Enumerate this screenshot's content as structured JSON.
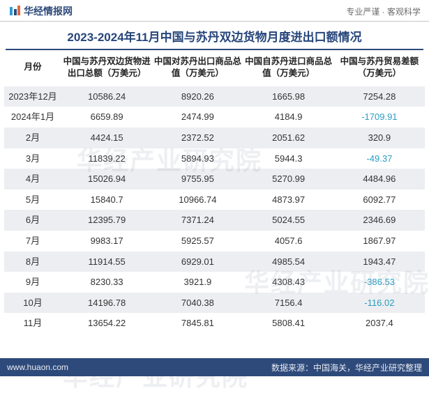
{
  "header": {
    "brand": "华经情报网",
    "brand_color": "#2e4a7a",
    "slogan": "专业严谨 · 客观科学",
    "slogan_color": "#6b6b6b"
  },
  "title": "2023-2024年11月中国与苏丹双边货物月度进出口额情况",
  "title_fontsize": 17,
  "title_color": "#26457a",
  "table": {
    "type": "table",
    "header_fontsize": 12.5,
    "cell_fontsize": 13,
    "row_odd_bg": "#eceef1",
    "row_even_bg": "#ffffff",
    "text_color": "#333333",
    "negative_color": "#2b9dc0",
    "columns": [
      "月份",
      "中国与苏丹双边货物进出口总额（万美元）",
      "中国对苏丹出口商品总值（万美元）",
      "中国自苏丹进口商品总值（万美元）",
      "中国与苏丹贸易差额（万美元）"
    ],
    "col_month_width": 82,
    "rows": [
      {
        "month": "2023年12月",
        "total": "10586.24",
        "export": "8920.26",
        "import": "1665.98",
        "balance": "7254.28",
        "neg": false
      },
      {
        "month": "2024年1月",
        "total": "6659.89",
        "export": "2474.99",
        "import": "4184.9",
        "balance": "-1709.91",
        "neg": true
      },
      {
        "month": "2月",
        "total": "4424.15",
        "export": "2372.52",
        "import": "2051.62",
        "balance": "320.9",
        "neg": false
      },
      {
        "month": "3月",
        "total": "11839.22",
        "export": "5894.93",
        "import": "5944.3",
        "balance": "-49.37",
        "neg": true
      },
      {
        "month": "4月",
        "total": "15026.94",
        "export": "9755.95",
        "import": "5270.99",
        "balance": "4484.96",
        "neg": false
      },
      {
        "month": "5月",
        "total": "15840.7",
        "export": "10966.74",
        "import": "4873.97",
        "balance": "6092.77",
        "neg": false
      },
      {
        "month": "6月",
        "total": "12395.79",
        "export": "7371.24",
        "import": "5024.55",
        "balance": "2346.69",
        "neg": false
      },
      {
        "month": "7月",
        "total": "9983.17",
        "export": "5925.57",
        "import": "4057.6",
        "balance": "1867.97",
        "neg": false
      },
      {
        "month": "8月",
        "total": "11914.55",
        "export": "6929.01",
        "import": "4985.54",
        "balance": "1943.47",
        "neg": false
      },
      {
        "month": "9月",
        "total": "8230.33",
        "export": "3921.9",
        "import": "4308.43",
        "balance": "-386.53",
        "neg": true
      },
      {
        "month": "10月",
        "total": "14196.78",
        "export": "7040.38",
        "import": "7156.4",
        "balance": "-116.02",
        "neg": true
      },
      {
        "month": "11月",
        "total": "13654.22",
        "export": "7845.81",
        "import": "5808.41",
        "balance": "2037.4",
        "neg": false
      }
    ]
  },
  "footer": {
    "site": "www.huaon.com",
    "source": "数据来源：中国海关，华经产业研究整理",
    "bg_color": "#2e4a7a",
    "text_color": "#e8ebf3"
  },
  "watermark": {
    "text": "华经产业研究院",
    "color": "rgba(150,160,180,0.17)",
    "fontsize": 36
  }
}
